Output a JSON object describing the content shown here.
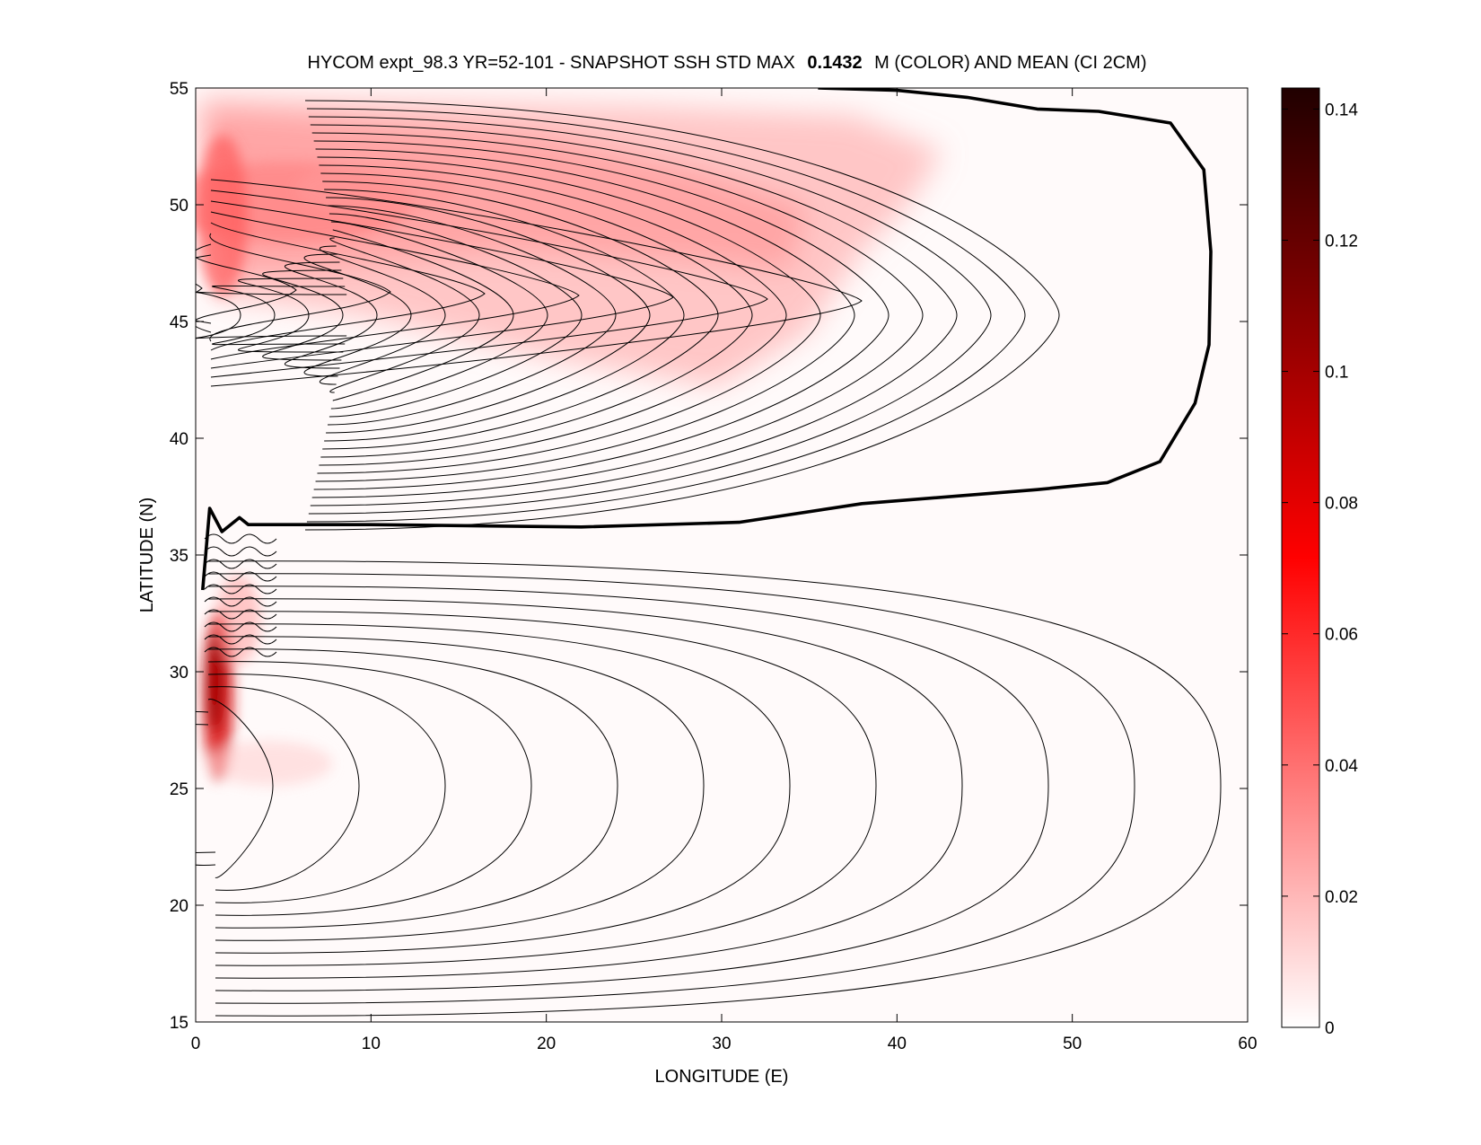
{
  "chart_data": {
    "type": "heatmap",
    "title_prefix": "HYCOM expt_98.3 YR=52-101 - SNAPSHOT SSH STD MAX",
    "title_value": "0.1432",
    "title_suffix": "M (COLOR) AND MEAN (CI 2CM)",
    "xlabel": "LONGITUDE (E)",
    "ylabel": "LATITUDE (N)",
    "xlim": [
      0,
      60
    ],
    "ylim": [
      15,
      55
    ],
    "xticks": [
      "0",
      "10",
      "20",
      "30",
      "40",
      "50",
      "60"
    ],
    "yticks": [
      "15",
      "20",
      "25",
      "30",
      "35",
      "40",
      "45",
      "50",
      "55"
    ],
    "colorbar": {
      "min": 0,
      "max": 0.1432,
      "ticks": [
        "0",
        "0.02",
        "0.04",
        "0.06",
        "0.08",
        "0.1",
        "0.12",
        "0.14"
      ],
      "colormap": [
        "#ffffff",
        "#ff7f7f",
        "#ff0000",
        "#7f0000",
        "#200000"
      ]
    },
    "contour_interval_cm": 2,
    "variability_maxima": [
      {
        "lon": 1.2,
        "lat": 29.5,
        "value": 0.1
      },
      {
        "lon": 8,
        "lat": 50.5,
        "value": 0.04
      },
      {
        "lon": 2,
        "lat": 50,
        "value": 0.06
      }
    ],
    "zero_contour": [
      [
        0.4,
        33.5
      ],
      [
        0.8,
        37
      ],
      [
        1.5,
        36
      ],
      [
        2.5,
        36.6
      ],
      [
        3,
        36.3
      ],
      [
        10,
        36.3
      ],
      [
        22,
        36.2
      ],
      [
        31,
        36.4
      ],
      [
        38,
        37.2
      ],
      [
        48,
        37.8
      ],
      [
        52,
        38.1
      ],
      [
        55,
        39
      ],
      [
        57,
        41.5
      ],
      [
        57.8,
        44
      ],
      [
        57.9,
        48
      ],
      [
        57.5,
        51.5
      ],
      [
        55.6,
        53.5
      ],
      [
        51.5,
        54
      ],
      [
        48,
        54.1
      ],
      [
        44,
        54.6
      ],
      [
        40,
        54.9
      ],
      [
        35.5,
        55
      ]
    ]
  }
}
